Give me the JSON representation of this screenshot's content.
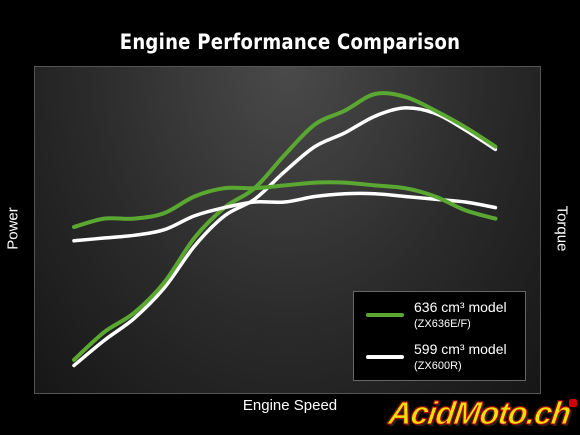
{
  "title": "Engine Performance Comparison",
  "axes": {
    "left_label": "Power",
    "right_label": "Torque",
    "x_label": "Engine Speed"
  },
  "legend": [
    {
      "name": "636 cm³ model",
      "sub": "(ZX636E/F)",
      "color": "#5aa832"
    },
    {
      "name": "599 cm³ model",
      "sub": "(ZX600R)",
      "color": "#ffffff"
    }
  ],
  "watermark": {
    "part1": "Acid",
    "part2": "Moto",
    "part3": ".ch"
  },
  "chart_data": {
    "type": "line",
    "title": "Engine Performance Comparison",
    "xlabel": "Engine Speed",
    "ylabel_left": "Power",
    "ylabel_right": "Torque",
    "x_ticks_labeled": false,
    "y_ticks_labeled": false,
    "xlim": [
      0,
      100
    ],
    "ylim": [
      0,
      100
    ],
    "legend_position": "bottom-right",
    "series": [
      {
        "name": "636 cm³ model",
        "quantity": "Power",
        "color": "#5aa832",
        "x": [
          0,
          7,
          14,
          21,
          28,
          35,
          42,
          49,
          56,
          63,
          70,
          77,
          84,
          91,
          98
        ],
        "y": [
          4,
          14,
          21,
          32,
          48,
          59,
          66,
          78,
          89,
          94,
          100,
          99,
          94,
          88,
          81
        ]
      },
      {
        "name": "599 cm³ model",
        "quantity": "Power",
        "color": "#ffffff",
        "x": [
          0,
          7,
          14,
          21,
          28,
          35,
          42,
          49,
          56,
          63,
          70,
          77,
          84,
          91,
          98
        ],
        "y": [
          2,
          11,
          19,
          30,
          45,
          56,
          62,
          72,
          81,
          86,
          92,
          95,
          93,
          87,
          80
        ]
      },
      {
        "name": "636 cm³ model",
        "quantity": "Torque",
        "color": "#5aa832",
        "x": [
          0,
          7,
          14,
          21,
          28,
          35,
          42,
          49,
          56,
          63,
          70,
          77,
          84,
          91,
          98
        ],
        "y": [
          52,
          55,
          55,
          57,
          63,
          66,
          66,
          67,
          68,
          68,
          67,
          66,
          63,
          58,
          55
        ]
      },
      {
        "name": "599 cm³ model",
        "quantity": "Torque",
        "color": "#ffffff",
        "x": [
          0,
          7,
          14,
          21,
          28,
          35,
          42,
          49,
          56,
          63,
          70,
          77,
          84,
          91,
          98
        ],
        "y": [
          47,
          48,
          49,
          51,
          56,
          59,
          61,
          61,
          63,
          64,
          64,
          63,
          62,
          61,
          59
        ]
      }
    ]
  }
}
